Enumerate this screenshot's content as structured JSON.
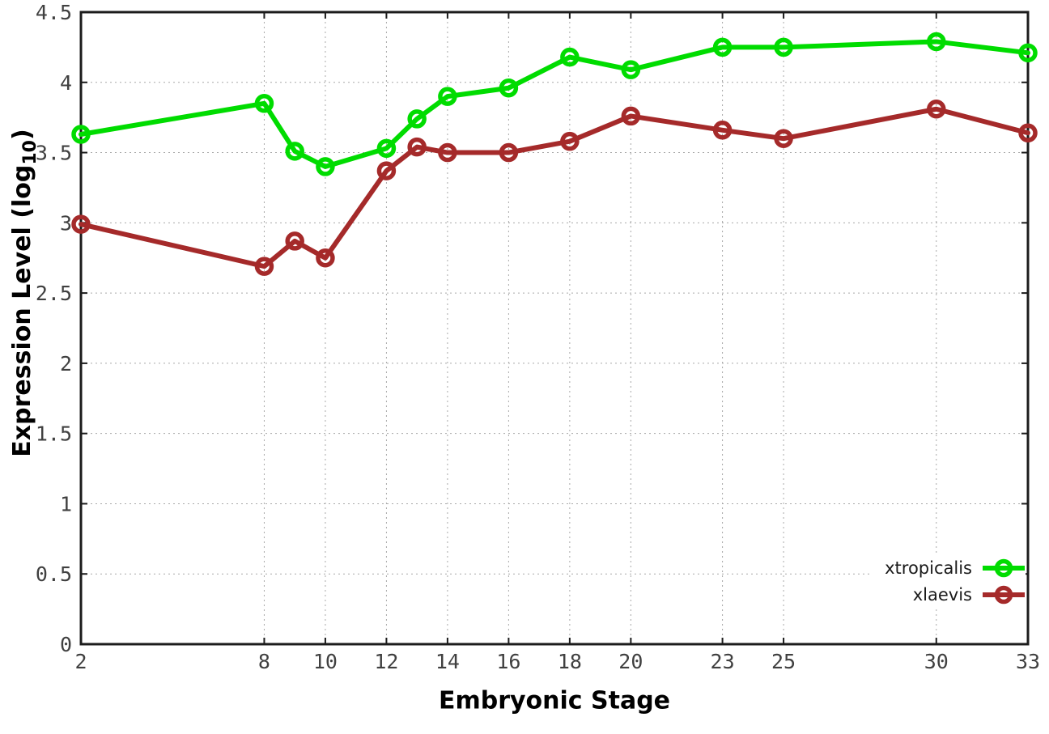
{
  "figure": {
    "background": "#ffffff",
    "border_color": "#1c1c1c",
    "grid_color": "#a8a8a8",
    "tick_label_color": "#404040"
  },
  "labels": {
    "xlabel": "Embryonic Stage",
    "ylabel_base": "Expression Level (log",
    "ylabel_sub": "10",
    "ylabel_close": ")"
  },
  "chart_data": {
    "type": "line",
    "title": "",
    "xlabel": "Embryonic Stage",
    "ylabel": "Expression Level (log10)",
    "grid": true,
    "legend_position": "inside-bottom-right",
    "xlim": [
      2,
      33
    ],
    "ylim": [
      0,
      4.5
    ],
    "x": [
      2,
      8,
      9,
      10,
      12,
      13,
      14,
      16,
      18,
      20,
      23,
      25,
      30,
      33
    ],
    "xticks": [
      2,
      8,
      10,
      12,
      14,
      16,
      18,
      20,
      23,
      25,
      30,
      33
    ],
    "xtick_labels": [
      "2",
      "8",
      "10",
      "12",
      "14",
      "16",
      "18",
      "20",
      "23",
      "25",
      "30",
      "33"
    ],
    "yticks": [
      0,
      0.5,
      1,
      1.5,
      2,
      2.5,
      3,
      3.5,
      4,
      4.5
    ],
    "ytick_labels": [
      "0",
      "0.5",
      "1",
      "1.5",
      "2",
      "2.5",
      "3",
      "3.5",
      "4",
      "4.5"
    ],
    "series": [
      {
        "name": "xtropicalis",
        "color": "#00dc00",
        "values": [
          3.63,
          3.85,
          3.51,
          3.4,
          3.53,
          3.74,
          3.9,
          3.96,
          4.18,
          4.09,
          4.25,
          4.25,
          4.29,
          4.21
        ]
      },
      {
        "name": "xlaevis",
        "color": "#a52a2a",
        "values": [
          2.99,
          2.69,
          2.87,
          2.75,
          3.37,
          3.54,
          3.5,
          3.5,
          3.58,
          3.76,
          3.66,
          3.6,
          3.81,
          3.64
        ]
      }
    ]
  }
}
